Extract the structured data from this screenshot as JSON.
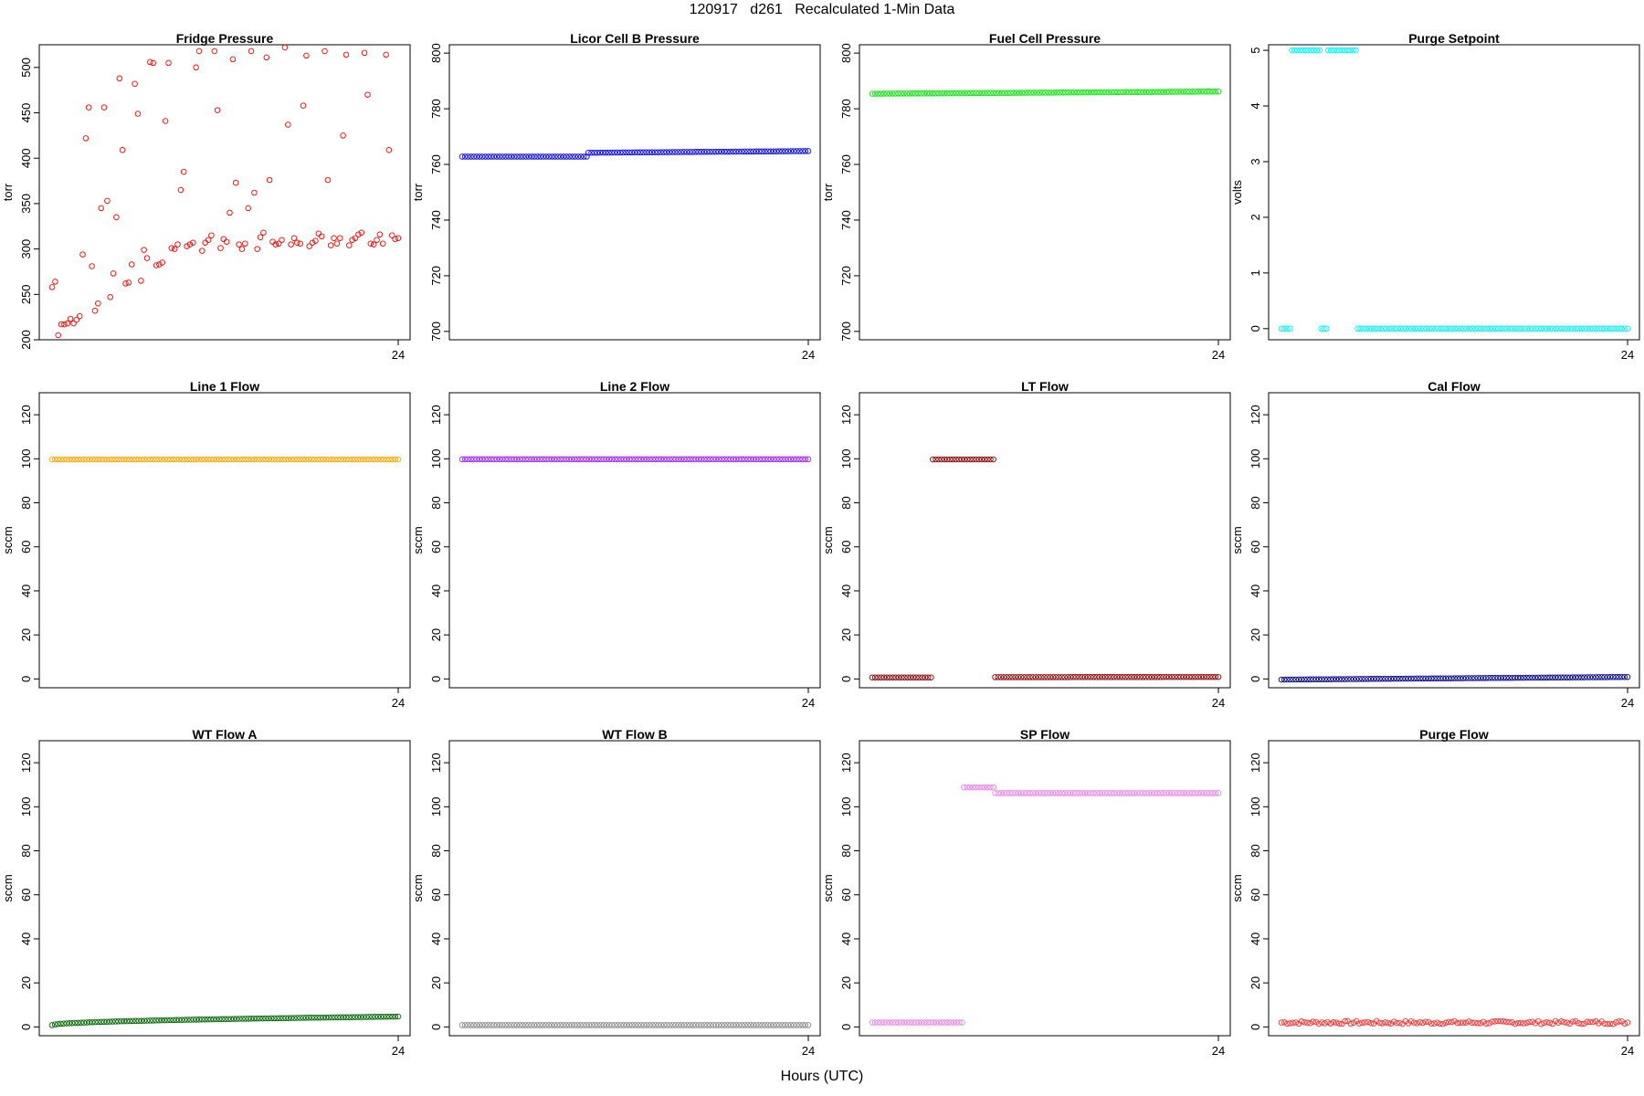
{
  "page": {
    "title": "120917   d261   Recalculated 1-Min Data",
    "xlabel": "Hours (UTC)"
  },
  "chart_data": [
    {
      "type": "scatter",
      "title": "Fridge Pressure",
      "ylabel": "torr",
      "color": "#ff0000",
      "ylim": [
        200,
        525
      ],
      "yticks": [
        200,
        250,
        300,
        350,
        400,
        450,
        500
      ],
      "xlim": [
        0,
        24
      ],
      "xticks": [
        24
      ],
      "series": [
        {
          "pattern": "scatter",
          "values": [
            258,
            264,
            205,
            217,
            217,
            218,
            223,
            218,
            222,
            226,
            294,
            422,
            456,
            281,
            232,
            240,
            345,
            456,
            353,
            247,
            273,
            335,
            488,
            409,
            262,
            263,
            283,
            482,
            449,
            265,
            299,
            290,
            506,
            505,
            282,
            283,
            285,
            441,
            505,
            301,
            300,
            305,
            365,
            385,
            303,
            305,
            307,
            500,
            518,
            298,
            307,
            310,
            315,
            518,
            453,
            301,
            311,
            308,
            340,
            509,
            373,
            305,
            300,
            306,
            345,
            518,
            362,
            300,
            313,
            318,
            511,
            376,
            308,
            305,
            306,
            310,
            522,
            437,
            305,
            312,
            307,
            306,
            458,
            513,
            303,
            307,
            309,
            317,
            314,
            518,
            376,
            304,
            312,
            306,
            312,
            425,
            514,
            304,
            310,
            312,
            316,
            318,
            516,
            470,
            306,
            305,
            310,
            316,
            306,
            514,
            409,
            315,
            311,
            312
          ]
        }
      ]
    },
    {
      "type": "scatter",
      "title": "Licor Cell B Pressure",
      "ylabel": "torr",
      "color": "#0000ff",
      "ylim": [
        697,
        803
      ],
      "yticks": [
        700,
        720,
        740,
        760,
        780,
        800
      ],
      "xlim": [
        0,
        24
      ],
      "xticks": [
        24
      ],
      "series": [
        {
          "pattern": "line",
          "segments": [
            {
              "from": 0,
              "to": 0.36,
              "y0": 762.8,
              "y1": 762.8
            },
            {
              "from": 0.365,
              "to": 1,
              "y0": 764.2,
              "y1": 764.8
            }
          ]
        }
      ]
    },
    {
      "type": "scatter",
      "title": "Fuel Cell Pressure",
      "ylabel": "torr",
      "color": "#00ee00",
      "ylim": [
        697,
        803
      ],
      "yticks": [
        700,
        720,
        740,
        760,
        780,
        800
      ],
      "xlim": [
        0,
        24
      ],
      "xticks": [
        24
      ],
      "series": [
        {
          "pattern": "line",
          "segments": [
            {
              "from": 0,
              "to": 1,
              "y0": 785.4,
              "y1": 786.2
            }
          ]
        }
      ]
    },
    {
      "type": "scatter",
      "title": "Purge Setpoint",
      "ylabel": "volts",
      "color": "#00ffff",
      "ylim": [
        -0.2,
        5.1
      ],
      "yticks": [
        0,
        1,
        2,
        3,
        4,
        5
      ],
      "xlim": [
        0,
        24
      ],
      "xticks": [
        24
      ],
      "series": [
        {
          "pattern": "line",
          "segments": [
            {
              "from": 0.0,
              "to": 0.025,
              "y0": 0,
              "y1": 0
            },
            {
              "from": 0.03,
              "to": 0.11,
              "y0": 5,
              "y1": 5
            },
            {
              "from": 0.115,
              "to": 0.13,
              "y0": 0,
              "y1": 0
            },
            {
              "from": 0.135,
              "to": 0.215,
              "y0": 5,
              "y1": 5
            },
            {
              "from": 0.22,
              "to": 1,
              "y0": 0,
              "y1": 0
            }
          ]
        }
      ]
    },
    {
      "type": "scatter",
      "title": "Line 1 Flow",
      "ylabel": "sccm",
      "color": "#ffa500",
      "ylim": [
        -4,
        130
      ],
      "yticks": [
        0,
        20,
        40,
        60,
        80,
        100,
        120
      ],
      "xlim": [
        0,
        24
      ],
      "xticks": [
        24
      ],
      "series": [
        {
          "pattern": "line",
          "segments": [
            {
              "from": 0,
              "to": 1,
              "y0": 99.7,
              "y1": 99.7
            }
          ]
        }
      ]
    },
    {
      "type": "scatter",
      "title": "Line 2 Flow",
      "ylabel": "sccm",
      "color": "#a020f0",
      "ylim": [
        -4,
        130
      ],
      "yticks": [
        0,
        20,
        40,
        60,
        80,
        100,
        120
      ],
      "xlim": [
        0,
        24
      ],
      "xticks": [
        24
      ],
      "series": [
        {
          "pattern": "line",
          "segments": [
            {
              "from": 0,
              "to": 1,
              "y0": 99.8,
              "y1": 99.8
            }
          ]
        }
      ]
    },
    {
      "type": "scatter",
      "title": "LT Flow",
      "ylabel": "sccm",
      "color": "#8b0000",
      "ylim": [
        -4,
        130
      ],
      "yticks": [
        0,
        20,
        40,
        60,
        80,
        100,
        120
      ],
      "xlim": [
        0,
        24
      ],
      "xticks": [
        24
      ],
      "series": [
        {
          "pattern": "line",
          "segments": [
            {
              "from": 0,
              "to": 0.17,
              "y0": 0.7,
              "y1": 0.7
            },
            {
              "from": 0.175,
              "to": 0.35,
              "y0": 99.7,
              "y1": 99.7
            },
            {
              "from": 0.355,
              "to": 1,
              "y0": 0.8,
              "y1": 0.9
            }
          ]
        }
      ]
    },
    {
      "type": "scatter",
      "title": "Cal Flow",
      "ylabel": "sccm",
      "color": "#00008b",
      "ylim": [
        -4,
        130
      ],
      "yticks": [
        0,
        20,
        40,
        60,
        80,
        100,
        120
      ],
      "xlim": [
        0,
        24
      ],
      "xticks": [
        24
      ],
      "series": [
        {
          "pattern": "line",
          "segments": [
            {
              "from": 0,
              "to": 1,
              "y0": -0.3,
              "y1": 0.9
            }
          ]
        }
      ]
    },
    {
      "type": "scatter",
      "title": "WT Flow A",
      "ylabel": "sccm",
      "color": "#006400",
      "ylim": [
        -4,
        130
      ],
      "yticks": [
        0,
        20,
        40,
        60,
        80,
        100,
        120
      ],
      "xlim": [
        0,
        24
      ],
      "xticks": [
        24
      ],
      "series": [
        {
          "pattern": "curve",
          "y0": 0.8,
          "y1": 4.7
        }
      ]
    },
    {
      "type": "scatter",
      "title": "WT Flow B",
      "ylabel": "sccm",
      "color": "#888888",
      "ylim": [
        -4,
        130
      ],
      "yticks": [
        0,
        20,
        40,
        60,
        80,
        100,
        120
      ],
      "xlim": [
        0,
        24
      ],
      "xticks": [
        24
      ],
      "series": [
        {
          "pattern": "line",
          "segments": [
            {
              "from": 0,
              "to": 1,
              "y0": 0.8,
              "y1": 0.8
            }
          ]
        }
      ]
    },
    {
      "type": "scatter",
      "title": "SP Flow",
      "ylabel": "sccm",
      "color": "#ee82ee",
      "ylim": [
        -4,
        130
      ],
      "yticks": [
        0,
        20,
        40,
        60,
        80,
        100,
        120
      ],
      "xlim": [
        0,
        24
      ],
      "xticks": [
        24
      ],
      "series": [
        {
          "pattern": "line",
          "segments": [
            {
              "from": 0,
              "to": 0.26,
              "y0": 2.0,
              "y1": 2.0
            },
            {
              "from": 0.265,
              "to": 0.35,
              "y0": 108.8,
              "y1": 108.8
            },
            {
              "from": 0.355,
              "to": 1,
              "y0": 106.2,
              "y1": 106.2
            }
          ]
        }
      ]
    },
    {
      "type": "scatter",
      "title": "Purge Flow",
      "ylabel": "sccm",
      "color": "#ff3030",
      "ylim": [
        -4,
        130
      ],
      "yticks": [
        0,
        20,
        40,
        60,
        80,
        100,
        120
      ],
      "xlim": [
        0,
        24
      ],
      "xticks": [
        24
      ],
      "series": [
        {
          "pattern": "noisy",
          "y0": 2.0,
          "y1": 2.0,
          "amp": 0.7
        }
      ]
    }
  ]
}
